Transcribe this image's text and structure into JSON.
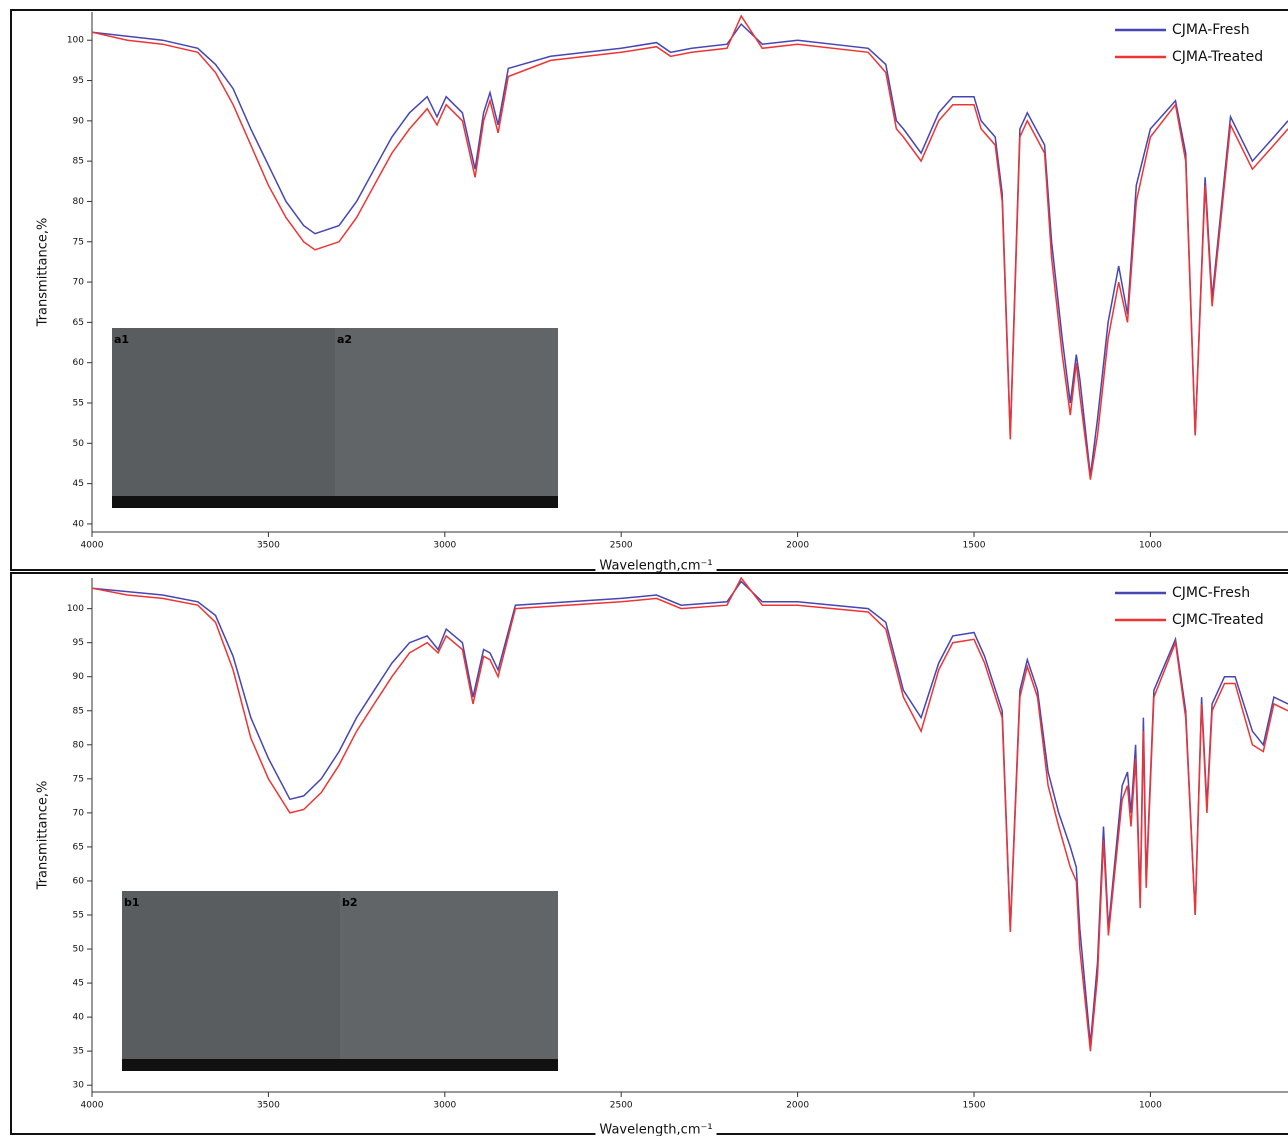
{
  "chart_data": [
    {
      "type": "line",
      "ylabel": "Transmittance,%",
      "xlabel": "Wavelength,cm⁻¹",
      "legend": "upper right",
      "xlim": [
        4000,
        610
      ],
      "ylim": [
        39,
        103.5
      ],
      "xticks": [
        4000,
        3500,
        3000,
        2500,
        2000,
        1500,
        1000
      ],
      "yticks": [
        40,
        45,
        50,
        55,
        60,
        65,
        70,
        75,
        80,
        85,
        90,
        95,
        100
      ],
      "inset_labels": [
        "a1",
        "a2"
      ],
      "x": [
        4000,
        3900,
        3800,
        3700,
        3650,
        3600,
        3550,
        3500,
        3450,
        3400,
        3368,
        3300,
        3250,
        3200,
        3150,
        3100,
        3050,
        3022,
        2996,
        2950,
        2914,
        2890,
        2872,
        2849,
        2820,
        2700,
        2500,
        2400,
        2360,
        2300,
        2200,
        2160,
        2100,
        2000,
        1800,
        1750,
        1720,
        1700,
        1650,
        1600,
        1560,
        1500,
        1480,
        1440,
        1420,
        1397,
        1370,
        1349,
        1300,
        1280,
        1250,
        1227,
        1210,
        1200,
        1170,
        1150,
        1120,
        1090,
        1065,
        1040,
        1000,
        929,
        900,
        873,
        845,
        825,
        773,
        711,
        650,
        610
      ],
      "series": [
        {
          "name": "CJMA-Fresh",
          "color": "#4646b4",
          "values": [
            101,
            100.5,
            100,
            99,
            97,
            94,
            89,
            84.5,
            80,
            77,
            76,
            77,
            80,
            84,
            88,
            91,
            93,
            90.5,
            93,
            91,
            84,
            91,
            93.5,
            89.5,
            96.5,
            98,
            99,
            99.7,
            98.5,
            99,
            99.5,
            102,
            99.5,
            100,
            99,
            97,
            90,
            89,
            86,
            91,
            93,
            93,
            90,
            88,
            81,
            51,
            89,
            91,
            87,
            75,
            63,
            55,
            61,
            58,
            46,
            53,
            65,
            72,
            66,
            82,
            89,
            92.5,
            86,
            51,
            83,
            68,
            90.5,
            85,
            88,
            90
          ]
        },
        {
          "name": "CJMA-Treated",
          "color": "#ee3434",
          "values": [
            101,
            100,
            99.5,
            98.5,
            96,
            92,
            87,
            82,
            78,
            75,
            74,
            75,
            78,
            82,
            86,
            89,
            91.5,
            89.5,
            92,
            90,
            83,
            90,
            92.5,
            88.5,
            95.5,
            97.5,
            98.5,
            99.2,
            98,
            98.5,
            99,
            103,
            99,
            99.5,
            98.5,
            96,
            89,
            88,
            85,
            90,
            92,
            92,
            89,
            87,
            80,
            50.5,
            88,
            90,
            86,
            73,
            61,
            53.5,
            60,
            56,
            45.5,
            51,
            63,
            70,
            65,
            80,
            88,
            92,
            85,
            51,
            82,
            67,
            89.5,
            84,
            87,
            89
          ]
        }
      ]
    },
    {
      "type": "line",
      "ylabel": "Transmittance,%",
      "xlabel": "Wavelength,cm⁻¹",
      "legend": "upper right",
      "xlim": [
        4000,
        610
      ],
      "ylim": [
        29,
        104.5
      ],
      "xticks": [
        4000,
        3500,
        3000,
        2500,
        2000,
        1500,
        1000
      ],
      "yticks": [
        30,
        35,
        40,
        45,
        50,
        55,
        60,
        65,
        70,
        75,
        80,
        85,
        90,
        95,
        100
      ],
      "inset_labels": [
        "b1",
        "b2"
      ],
      "x": [
        4000,
        3900,
        3800,
        3700,
        3650,
        3600,
        3550,
        3500,
        3439,
        3400,
        3350,
        3300,
        3250,
        3200,
        3150,
        3100,
        3050,
        3019,
        2996,
        2950,
        2920,
        2890,
        2872,
        2849,
        2800,
        2500,
        2400,
        2330,
        2200,
        2160,
        2100,
        2000,
        1800,
        1750,
        1700,
        1650,
        1600,
        1560,
        1500,
        1470,
        1420,
        1397,
        1370,
        1349,
        1320,
        1290,
        1260,
        1227,
        1210,
        1200,
        1170,
        1150,
        1133,
        1119,
        1080,
        1065,
        1055,
        1042,
        1029,
        1020,
        1012,
        990,
        929,
        900,
        873,
        855,
        840,
        825,
        790,
        760,
        711,
        680,
        650,
        610
      ],
      "series": [
        {
          "name": "CJMC-Fresh",
          "color": "#4646b4",
          "values": [
            103,
            102.5,
            102,
            101,
            99,
            93,
            84,
            78,
            72,
            72.5,
            75,
            79,
            84,
            88,
            92,
            95,
            96,
            94,
            97,
            95,
            87,
            94,
            93.5,
            91,
            100.5,
            101.5,
            102,
            100.5,
            101,
            104,
            101,
            101,
            100,
            98,
            88,
            84,
            92,
            96,
            96.5,
            93,
            85,
            53,
            88,
            92.5,
            88,
            76,
            70,
            65,
            62,
            53,
            36,
            48,
            68,
            53,
            74,
            76,
            70,
            80,
            57,
            84,
            60,
            88,
            95.5,
            85,
            55,
            87,
            71,
            86,
            90,
            90,
            82,
            80,
            87,
            86
          ]
        },
        {
          "name": "CJMC-Treated",
          "color": "#ee3434",
          "values": [
            103,
            102,
            101.5,
            100.5,
            98,
            91,
            81,
            75,
            70,
            70.5,
            73,
            77,
            82,
            86,
            90,
            93.5,
            95,
            93.5,
            96,
            94,
            86,
            93,
            92.5,
            90,
            100,
            101,
            101.5,
            100,
            100.5,
            104.5,
            100.5,
            100.5,
            99.5,
            97,
            87,
            82,
            91,
            95,
            95.5,
            92,
            84,
            52.5,
            87,
            91.5,
            87,
            74,
            68,
            62,
            60,
            50,
            35,
            46,
            66,
            52,
            72,
            74,
            68,
            78,
            56,
            82,
            59,
            87,
            95,
            84,
            55,
            86,
            70,
            85,
            89,
            89,
            80,
            79,
            86,
            85
          ]
        }
      ]
    }
  ]
}
